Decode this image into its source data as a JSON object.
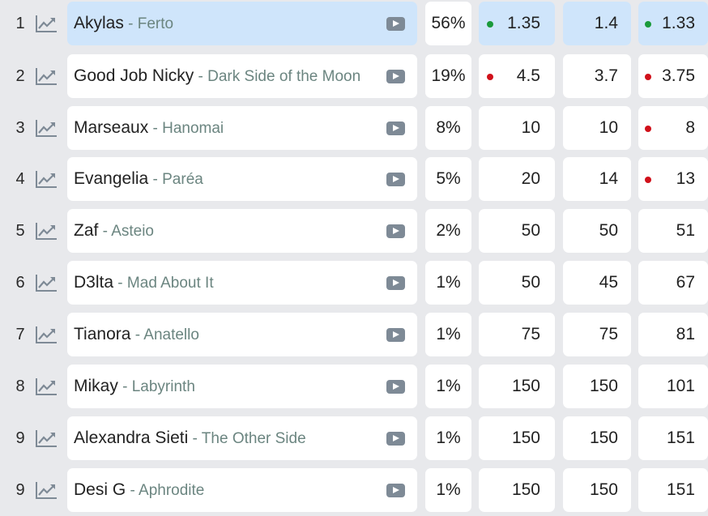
{
  "colors": {
    "up": "#1a9a3a",
    "down": "#d0101a",
    "highlight": "#cfe5fb"
  },
  "rows": [
    {
      "rank": "1",
      "artist": "Akylas",
      "song": "Ferto",
      "percent": "56%",
      "odds": [
        "1.35",
        "1.4",
        "1.33"
      ],
      "dots": [
        "up",
        null,
        "up"
      ],
      "highlighted": true
    },
    {
      "rank": "2",
      "artist": "Good Job Nicky",
      "song": "Dark Side of the Moon",
      "percent": "19%",
      "odds": [
        "4.5",
        "3.7",
        "3.75"
      ],
      "dots": [
        "down",
        null,
        "down"
      ]
    },
    {
      "rank": "3",
      "artist": "Marseaux",
      "song": "Hanomai",
      "percent": "8%",
      "odds": [
        "10",
        "10",
        "8"
      ],
      "dots": [
        null,
        null,
        "down"
      ]
    },
    {
      "rank": "4",
      "artist": "Evangelia",
      "song": "Paréa",
      "percent": "5%",
      "odds": [
        "20",
        "14",
        "13"
      ],
      "dots": [
        null,
        null,
        "down"
      ]
    },
    {
      "rank": "5",
      "artist": "Zaf",
      "song": "Asteio",
      "percent": "2%",
      "odds": [
        "50",
        "50",
        "51"
      ],
      "dots": [
        null,
        null,
        null
      ]
    },
    {
      "rank": "6",
      "artist": "D3lta",
      "song": "Mad About It",
      "percent": "1%",
      "odds": [
        "50",
        "45",
        "67"
      ],
      "dots": [
        null,
        null,
        null
      ]
    },
    {
      "rank": "7",
      "artist": "Tianora",
      "song": "Anatello",
      "percent": "1%",
      "odds": [
        "75",
        "75",
        "81"
      ],
      "dots": [
        null,
        null,
        null
      ]
    },
    {
      "rank": "8",
      "artist": "Mikay",
      "song": "Labyrinth",
      "percent": "1%",
      "odds": [
        "150",
        "150",
        "101"
      ],
      "dots": [
        null,
        null,
        null
      ]
    },
    {
      "rank": "9",
      "artist": "Alexandra Sieti",
      "song": "The Other Side",
      "percent": "1%",
      "odds": [
        "150",
        "150",
        "151"
      ],
      "dots": [
        null,
        null,
        null
      ]
    },
    {
      "rank": "9",
      "artist": "Desi G",
      "song": "Aphrodite",
      "percent": "1%",
      "odds": [
        "150",
        "150",
        "151"
      ],
      "dots": [
        null,
        null,
        null
      ]
    }
  ]
}
